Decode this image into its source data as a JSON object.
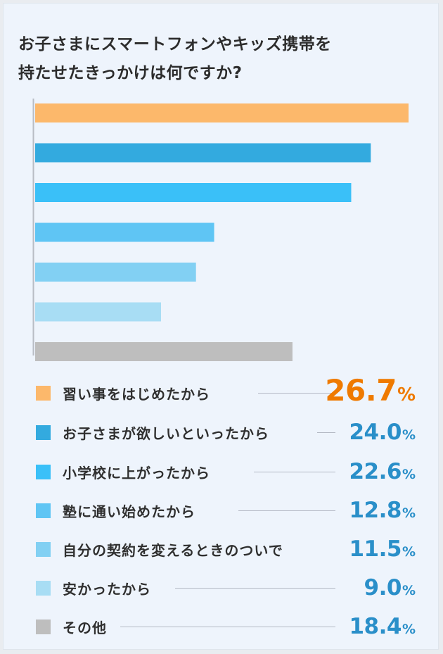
{
  "title_lines": [
    "お子さまにスマートフォンやキッズ携帯を",
    "持たせたきっかけは何ですか?"
  ],
  "chart_data": {
    "type": "bar",
    "orientation": "horizontal",
    "title": "お子さまにスマートフォンやキッズ携帯を持たせたきっかけは何ですか?",
    "unit": "%",
    "xlim": [
      0,
      26.7
    ],
    "categories": [
      "習い事をはじめたから",
      "お子さまが欲しいといったから",
      "小学校に上がったから",
      "塾に通い始めたから",
      "自分の契約を変えるときのついで",
      "安かったから",
      "その他"
    ],
    "values": [
      26.7,
      24.0,
      22.6,
      12.8,
      11.5,
      9.0,
      18.4
    ],
    "value_labels": [
      "26.7",
      "24.0",
      "22.6",
      "12.8",
      "11.5",
      "9.0",
      "18.4"
    ],
    "colors": [
      "#fcb86b",
      "#33aadf",
      "#3ac0f8",
      "#5fc5f4",
      "#82d0f3",
      "#a8ddf4",
      "#bebebe"
    ],
    "highlight_color": "#ef7a00",
    "value_color": "#2a8fc9",
    "percent_sign": "%"
  }
}
